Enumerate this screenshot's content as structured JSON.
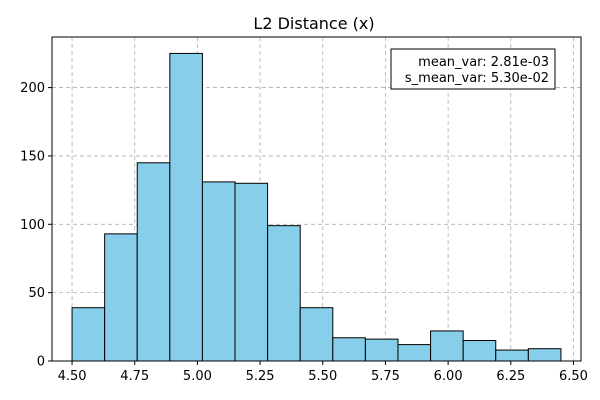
{
  "chart_data": {
    "type": "histogram",
    "title": "L2 Distance (x)",
    "xlabel": "",
    "ylabel": "",
    "bin_edges": [
      4.5,
      4.63,
      4.76,
      4.89,
      5.02,
      5.15,
      5.28,
      5.41,
      5.54,
      5.67,
      5.8,
      5.93,
      6.06,
      6.19,
      6.32,
      6.45
    ],
    "values": [
      39,
      93,
      145,
      225,
      131,
      130,
      99,
      39,
      17,
      16,
      12,
      22,
      15,
      8,
      9
    ],
    "xlim": [
      4.42,
      6.53
    ],
    "ylim": [
      0,
      237
    ],
    "x_ticks": [
      4.5,
      4.75,
      5.0,
      5.25,
      5.5,
      5.75,
      6.0,
      6.25,
      6.5
    ],
    "x_tick_labels": [
      "4.50",
      "4.75",
      "5.00",
      "5.25",
      "5.50",
      "5.75",
      "6.00",
      "6.25",
      "6.50"
    ],
    "y_ticks": [
      0,
      50,
      100,
      150,
      200
    ],
    "y_tick_labels": [
      "0",
      "50",
      "100",
      "150",
      "200"
    ],
    "grid": true,
    "bar_color": "#87ceeb",
    "edge_color": "#000000",
    "annotation": {
      "line1": "mean_var: 2.81e-03",
      "line2": "s_mean_var: 5.30e-02",
      "position": "top-right"
    }
  }
}
